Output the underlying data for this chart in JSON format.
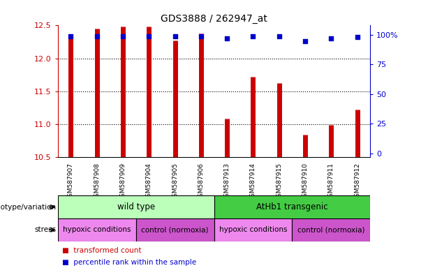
{
  "title": "GDS3888 / 262947_at",
  "samples": [
    "GSM587907",
    "GSM587908",
    "GSM587909",
    "GSM587904",
    "GSM587905",
    "GSM587906",
    "GSM587913",
    "GSM587914",
    "GSM587915",
    "GSM587910",
    "GSM587911",
    "GSM587912"
  ],
  "bar_values": [
    12.35,
    12.45,
    12.48,
    12.48,
    12.27,
    12.38,
    11.08,
    11.72,
    11.62,
    10.84,
    10.98,
    11.22
  ],
  "dot_values": [
    99,
    99,
    99,
    99,
    99,
    99,
    97,
    99,
    99,
    95,
    97,
    98
  ],
  "ymin": 10.5,
  "ymax": 12.5,
  "yticks": [
    10.5,
    11.0,
    11.5,
    12.0,
    12.5
  ],
  "y2ticks": [
    0,
    25,
    50,
    75,
    100
  ],
  "bar_color": "#cc0000",
  "dot_color": "#0000cc",
  "genotype_groups": [
    {
      "label": "wild type",
      "start": 0,
      "end": 5,
      "color": "#bbffbb"
    },
    {
      "label": "AtHb1 transgenic",
      "start": 6,
      "end": 11,
      "color": "#44cc44"
    }
  ],
  "stress_groups": [
    {
      "label": "hypoxic conditions",
      "start": 0,
      "end": 2,
      "color": "#ee88ee"
    },
    {
      "label": "control (normoxia)",
      "start": 3,
      "end": 5,
      "color": "#cc55cc"
    },
    {
      "label": "hypoxic conditions",
      "start": 6,
      "end": 8,
      "color": "#ee88ee"
    },
    {
      "label": "control (normoxia)",
      "start": 9,
      "end": 11,
      "color": "#cc55cc"
    }
  ],
  "legend_items": [
    {
      "label": "transformed count",
      "color": "#cc0000"
    },
    {
      "label": "percentile rank within the sample",
      "color": "#0000cc"
    }
  ],
  "left_color": "#cc0000",
  "right_color": "#0000cc",
  "genotype_label": "genotype/variation",
  "stress_label": "stress",
  "sample_bg": "#dddddd"
}
